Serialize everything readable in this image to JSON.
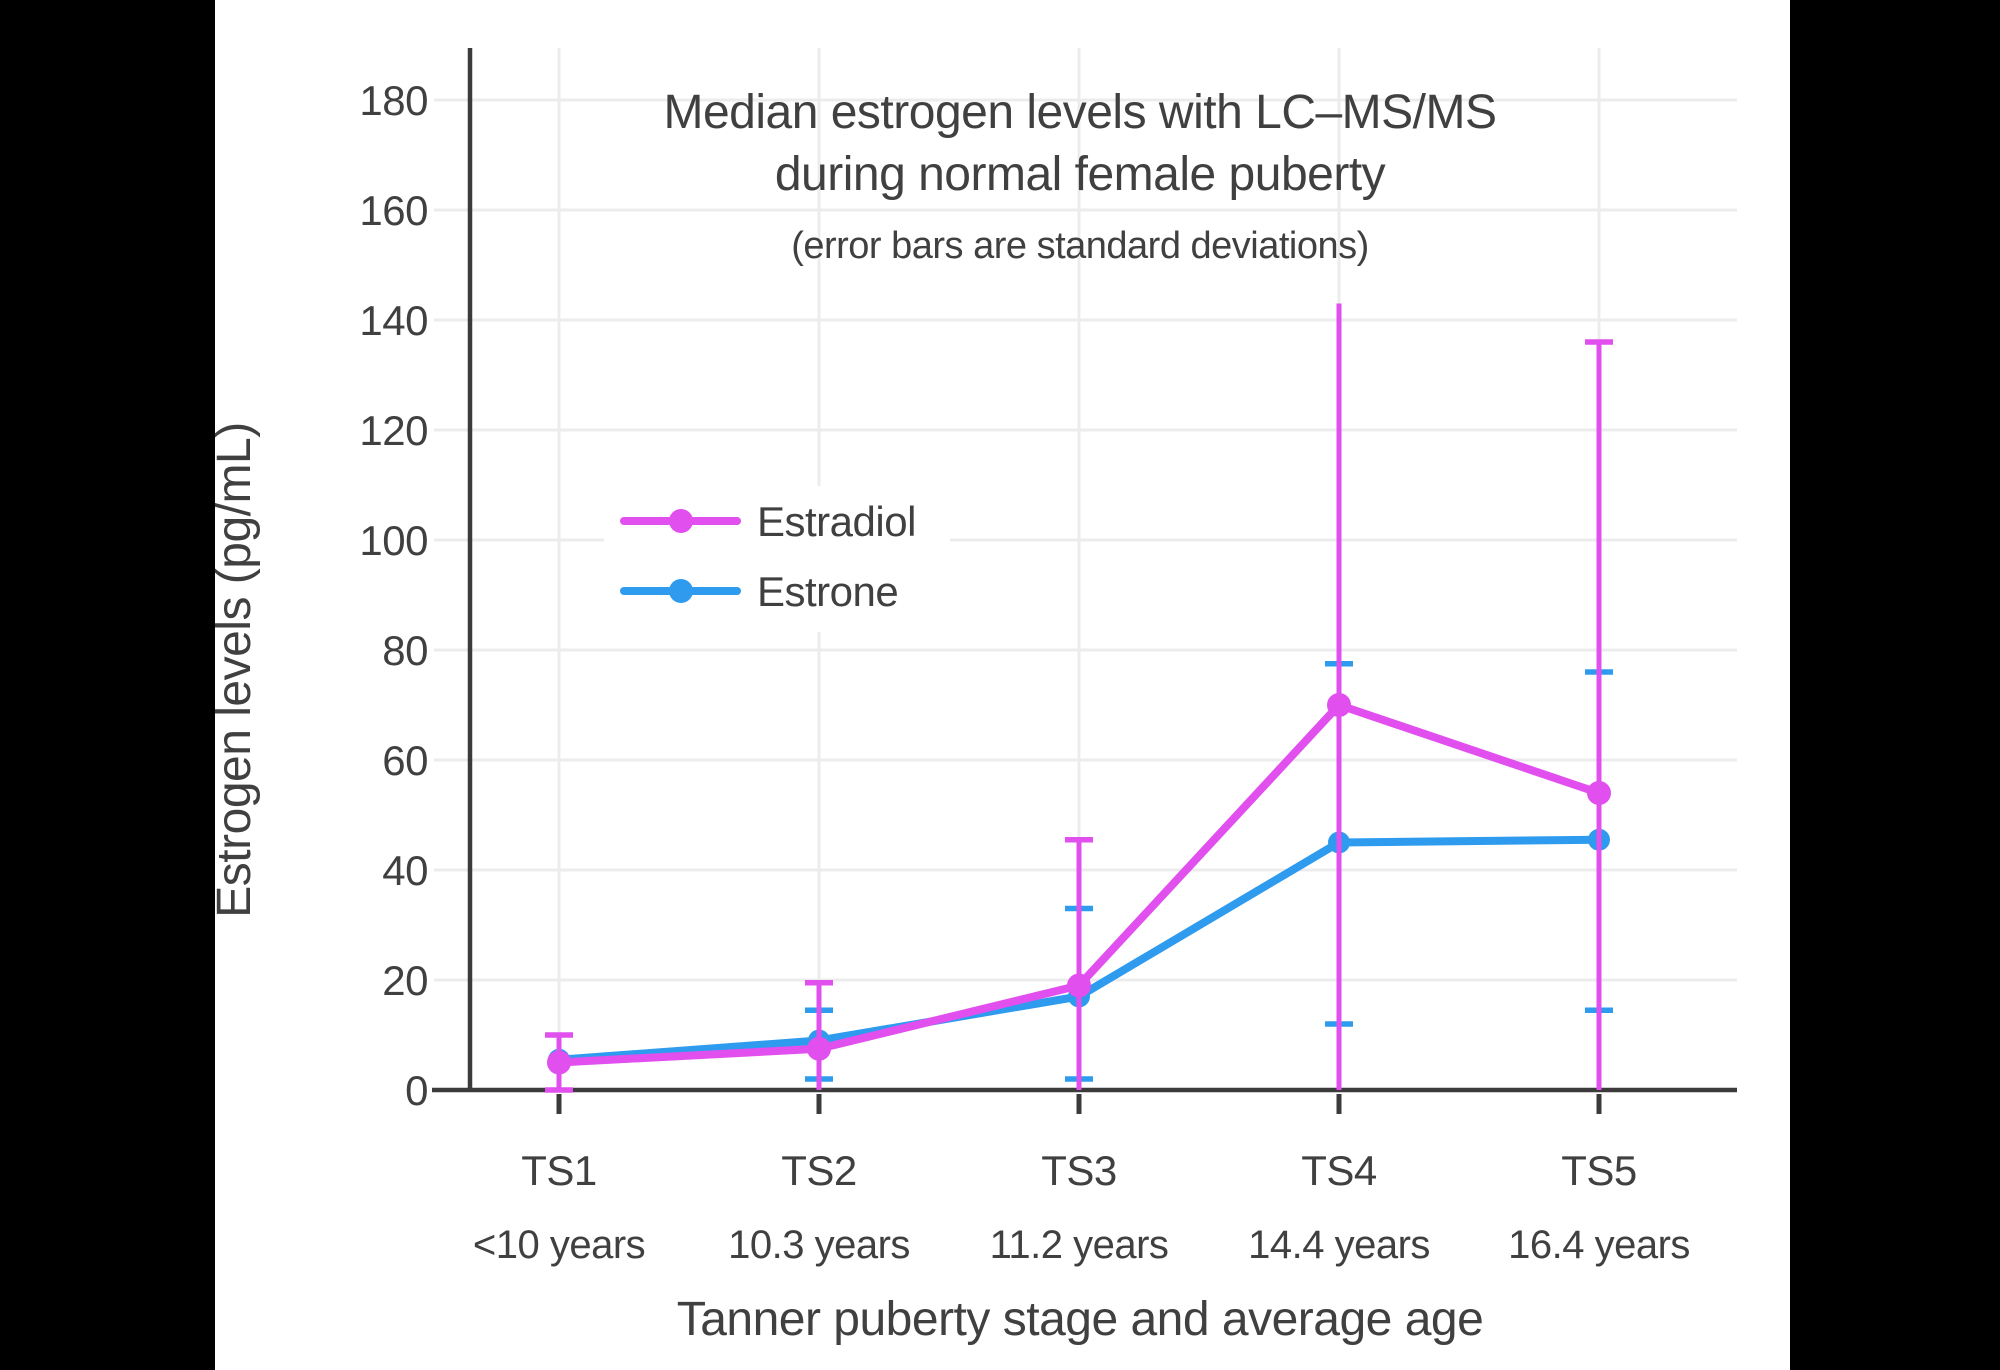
{
  "window": {
    "background": "#ffffff",
    "letterbox_color": "#000000"
  },
  "chart_data": {
    "type": "line",
    "title": "Median estrogen levels with LC–MS/MS during normal female puberty",
    "title_lines": [
      "Median estrogen levels with LC–MS/MS",
      "during normal female puberty"
    ],
    "subtitle": "(error bars are standard deviations)",
    "xlabel": "Tanner puberty stage and average age",
    "ylabel": "Estrogen levels (pg/mL)",
    "ylim": [
      0,
      190
    ],
    "yticks": [
      0,
      20,
      40,
      60,
      80,
      100,
      120,
      140,
      160,
      180
    ],
    "grid": true,
    "legend_position": "inside-left-middle",
    "error_bar_meaning": "standard deviations",
    "text_color": "#404040",
    "grid_color": "#ececec",
    "axis_color": "#3b3b3b",
    "categories": [
      {
        "stage": "TS1",
        "age": "<10 years"
      },
      {
        "stage": "TS2",
        "age": "10.3 years"
      },
      {
        "stage": "TS3",
        "age": "11.2 years"
      },
      {
        "stage": "TS4",
        "age": "14.4 years"
      },
      {
        "stage": "TS5",
        "age": "16.4 years"
      }
    ],
    "series": [
      {
        "name": "Estradiol",
        "color": "#e14fee",
        "values": [
          5,
          7.5,
          19,
          70,
          54
        ],
        "error_low": [
          0,
          0,
          0,
          0,
          0
        ],
        "error_high": [
          10,
          19.5,
          45.5,
          143,
          136
        ],
        "cap_low": [
          true,
          false,
          false,
          false,
          false
        ],
        "cap_high": [
          true,
          true,
          true,
          false,
          true
        ]
      },
      {
        "name": "Estrone",
        "color": "#2e9bef",
        "values": [
          5.5,
          9,
          17,
          45,
          45.5
        ],
        "error_low": [
          null,
          2,
          2,
          12,
          14.5
        ],
        "error_high": [
          null,
          14.5,
          33,
          77.5,
          76
        ],
        "cap_low": [
          false,
          true,
          true,
          true,
          true
        ],
        "cap_high": [
          false,
          true,
          true,
          true,
          true
        ]
      }
    ]
  }
}
